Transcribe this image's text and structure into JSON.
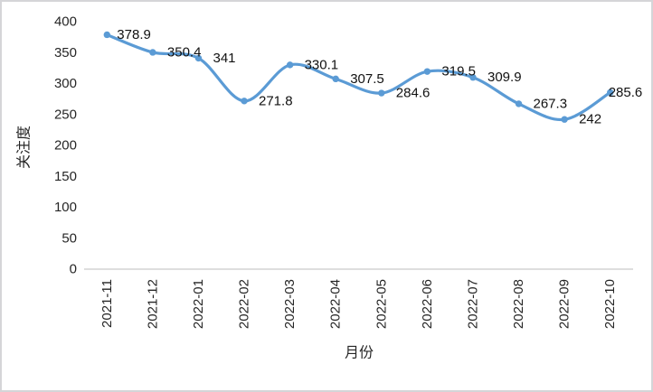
{
  "chart_data": {
    "type": "line",
    "smooth": true,
    "title": "",
    "xlabel": "月份",
    "ylabel": "关注度",
    "categories": [
      "2021-11",
      "2021-12",
      "2022-01",
      "2022-02",
      "2022-03",
      "2022-04",
      "2022-05",
      "2022-06",
      "2022-07",
      "2022-08",
      "2022-09",
      "2022-10"
    ],
    "values": [
      378.9,
      350.4,
      341,
      271.8,
      330.1,
      307.5,
      284.6,
      319.5,
      309.9,
      267.3,
      242,
      285.6
    ],
    "value_labels": [
      "378.9",
      "350.4",
      "341",
      "271.8",
      "330.1",
      "307.5",
      "284.6",
      "319.5",
      "309.9",
      "267.3",
      "242",
      "285.6"
    ],
    "y_ticks": [
      400,
      350,
      300,
      250,
      200,
      150,
      100,
      50,
      0
    ],
    "ylim": [
      0,
      400
    ],
    "grid": false,
    "legend_position": "none",
    "line_color": "#5B9BD5",
    "marker_color": "#5B9BD5",
    "axis_line_color": "#D9D9D9",
    "tick_text_color": "#262626",
    "data_label_color": "#111111"
  }
}
